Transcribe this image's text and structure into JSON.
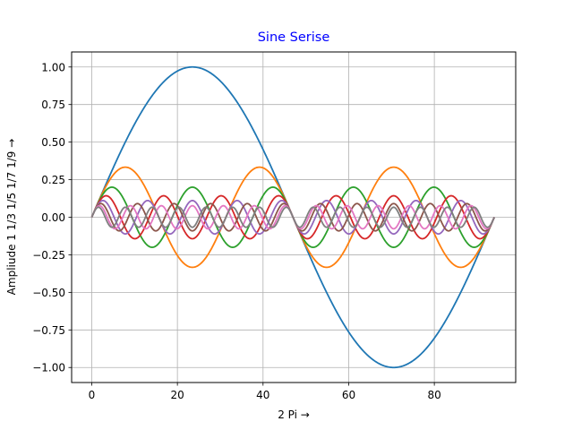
{
  "chart_data": {
    "type": "line",
    "title": "Sine Serise",
    "title_color": "#0000ff",
    "xlabel": "2 Pi →",
    "ylabel": "Ampliude 1 1/3 1/5 1/7 1/9 →",
    "xlim": [
      -4.7,
      99
    ],
    "ylim": [
      -1.1,
      1.1
    ],
    "xticks": [
      0,
      20,
      40,
      60,
      80
    ],
    "xtick_labels": [
      "0",
      "20",
      "40",
      "60",
      "80"
    ],
    "yticks": [
      1.0,
      0.75,
      0.5,
      0.25,
      0.0,
      -0.25,
      -0.5,
      -0.75,
      -1.0
    ],
    "ytick_labels": [
      "1.00",
      "0.75",
      "0.50",
      "0.25",
      "0.00",
      "−0.25",
      "−0.50",
      "−0.75",
      "−1.00"
    ],
    "grid": true,
    "legend": false,
    "x_range": [
      0,
      94
    ],
    "series": [
      {
        "name": "sin(x)",
        "harmonic": 1,
        "amplitude": 1.0,
        "color": "#1f77b4"
      },
      {
        "name": "1/3 sin(3x)",
        "harmonic": 3,
        "amplitude": 0.3333,
        "color": "#ff7f0e"
      },
      {
        "name": "1/5 sin(5x)",
        "harmonic": 5,
        "amplitude": 0.2,
        "color": "#2ca02c"
      },
      {
        "name": "1/7 sin(7x)",
        "harmonic": 7,
        "amplitude": 0.1429,
        "color": "#d62728"
      },
      {
        "name": "1/9 sin(9x)",
        "harmonic": 9,
        "amplitude": 0.1111,
        "color": "#9467bd"
      },
      {
        "name": "1/11 sin(11x)",
        "harmonic": 11,
        "amplitude": 0.0909,
        "color": "#8c564b"
      },
      {
        "name": "1/13 sin(13x)",
        "harmonic": 13,
        "amplitude": 0.0769,
        "color": "#e377c2"
      },
      {
        "name": "1/15 sin(15x)",
        "harmonic": 15,
        "amplitude": 0.0667,
        "color": "#7f7f7f"
      }
    ]
  }
}
